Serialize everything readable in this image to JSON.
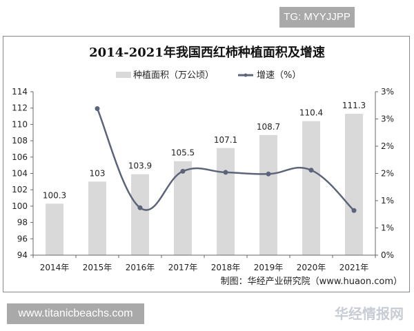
{
  "watermark_top": "TG: MYYJJPP",
  "watermark_bottom": "www.titanicbeachs.com",
  "watermark_logo": "华经情报网 huaon.com",
  "chart_data": {
    "type": "bar",
    "title": "2014-2021年我国西红柿种植面积及增速",
    "categories": [
      "2014年",
      "2015年",
      "2016年",
      "2017年",
      "2018年",
      "2019年",
      "2020年",
      "2021年"
    ],
    "series": [
      {
        "name": "种植面积（万公顷）",
        "type": "bar",
        "axis": "left",
        "values": [
          100.3,
          103,
          103.9,
          105.5,
          107.1,
          108.7,
          110.4,
          111.3
        ],
        "labels": [
          "100.3",
          "103",
          "103.9",
          "105.5",
          "107.1",
          "108.7",
          "110.4",
          "111.3"
        ],
        "color": "#d9d9d9"
      },
      {
        "name": "增速（%）",
        "type": "line",
        "axis": "right",
        "values": [
          null,
          2.69,
          0.87,
          1.54,
          1.52,
          1.49,
          1.56,
          0.82
        ],
        "color": "#5b6478"
      }
    ],
    "left_axis": {
      "min": 94,
      "max": 114,
      "ticks": [
        "94",
        "96",
        "98",
        "100",
        "102",
        "104",
        "106",
        "108",
        "110",
        "112",
        "114"
      ]
    },
    "right_axis": {
      "min": 0,
      "max": 3,
      "ticks": [
        "0%",
        "1%",
        "1%",
        "2%",
        "2%",
        "3%",
        "3%"
      ]
    },
    "legend_position": "top-center",
    "source": "制图：华经产业研究院（www.huaon.com）"
  }
}
